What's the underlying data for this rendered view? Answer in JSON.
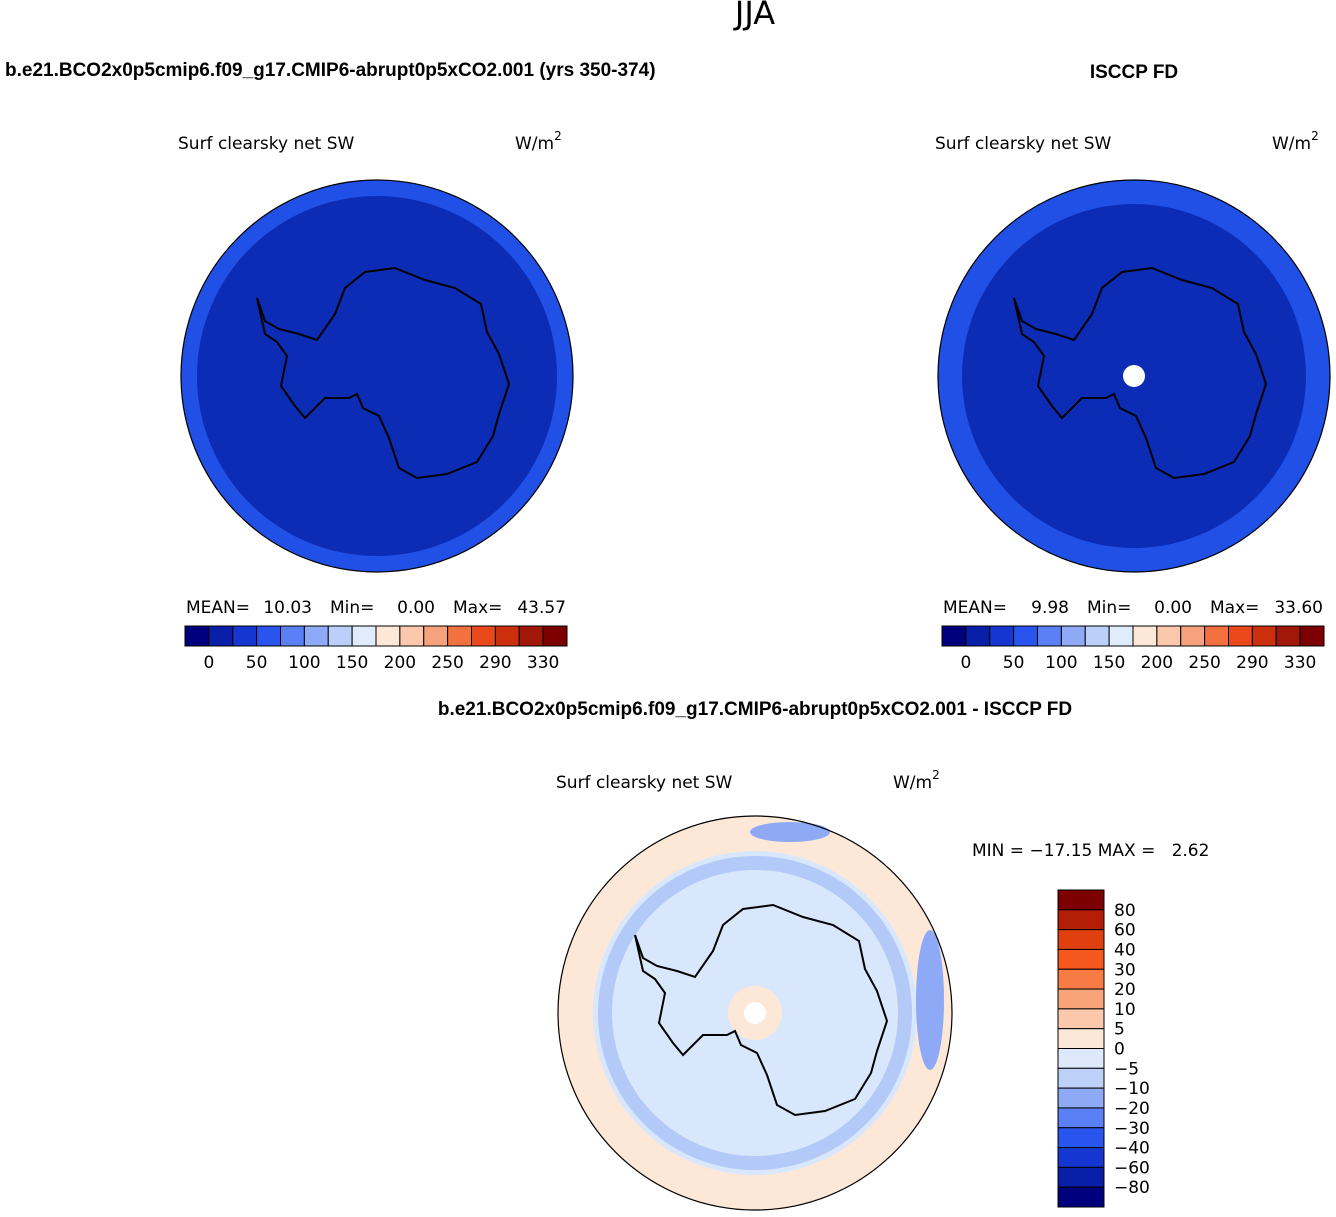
{
  "title": "JJA",
  "panels": [
    {
      "header": "b.e21.BCO2x0p5cmip6.f09_g17.CMIP6-abrupt0p5xCO2.001 (yrs 350-374)",
      "plot_title": "Surf clearsky net SW",
      "units": "W/m",
      "units_exponent": "2",
      "stats": [
        "MEAN=",
        "10.03",
        "Min=",
        "0.00",
        "Max=",
        "43.57"
      ],
      "colorbar": {
        "colors": [
          "#00007e",
          "#0a1fa8",
          "#1536d0",
          "#2a54ee",
          "#5b7ff5",
          "#8eaaf6",
          "#bccff8",
          "#e0ebfb",
          "#fde8d8",
          "#fbc8ac",
          "#f6a27e",
          "#f2713f",
          "#ea4a1b",
          "#cc2f0b",
          "#a11808",
          "#7c0000"
        ],
        "labels": [
          "0",
          "50",
          "100",
          "150",
          "200",
          "250",
          "290",
          "330"
        ]
      }
    },
    {
      "header": "ISCCP FD",
      "plot_title": "Surf clearsky net SW",
      "units": "W/m",
      "units_exponent": "2",
      "stats": [
        "MEAN=",
        "9.98",
        "Min=",
        "0.00",
        "Max=",
        "33.60"
      ],
      "colorbar": {
        "colors": [
          "#00007e",
          "#0a1fa8",
          "#1536d0",
          "#2a54ee",
          "#5b7ff5",
          "#8eaaf6",
          "#bccff8",
          "#e0ebfb",
          "#fde8d8",
          "#fbc8ac",
          "#f6a27e",
          "#f2713f",
          "#ea4a1b",
          "#cc2f0b",
          "#a11808",
          "#7c0000"
        ],
        "labels": [
          "0",
          "50",
          "100",
          "150",
          "200",
          "250",
          "290",
          "330"
        ]
      }
    },
    {
      "header": "b.e21.BCO2x0p5cmip6.f09_g17.CMIP6-abrupt0p5xCO2.001 - ISCCP FD",
      "plot_title": "Surf clearsky net SW",
      "units": "W/m",
      "units_exponent": "2",
      "stats": [
        "MIN = −17.15 MAX =   2.62"
      ],
      "colorbar": {
        "colors": [
          "#7c0000",
          "#b51e06",
          "#e0400f",
          "#f5581f",
          "#f77b45",
          "#f9a37a",
          "#fcc8ab",
          "#fde8d8",
          "#dde9fb",
          "#bcd0f8",
          "#8eaaf6",
          "#5b7ff5",
          "#2a54ee",
          "#1536d0",
          "#0a1fa8",
          "#00007e"
        ],
        "labels": [
          "80",
          "60",
          "40",
          "30",
          "20",
          "10",
          "5",
          "0",
          "−5",
          "−10",
          "−20",
          "−30",
          "−40",
          "−60",
          "−80"
        ]
      }
    }
  ]
}
